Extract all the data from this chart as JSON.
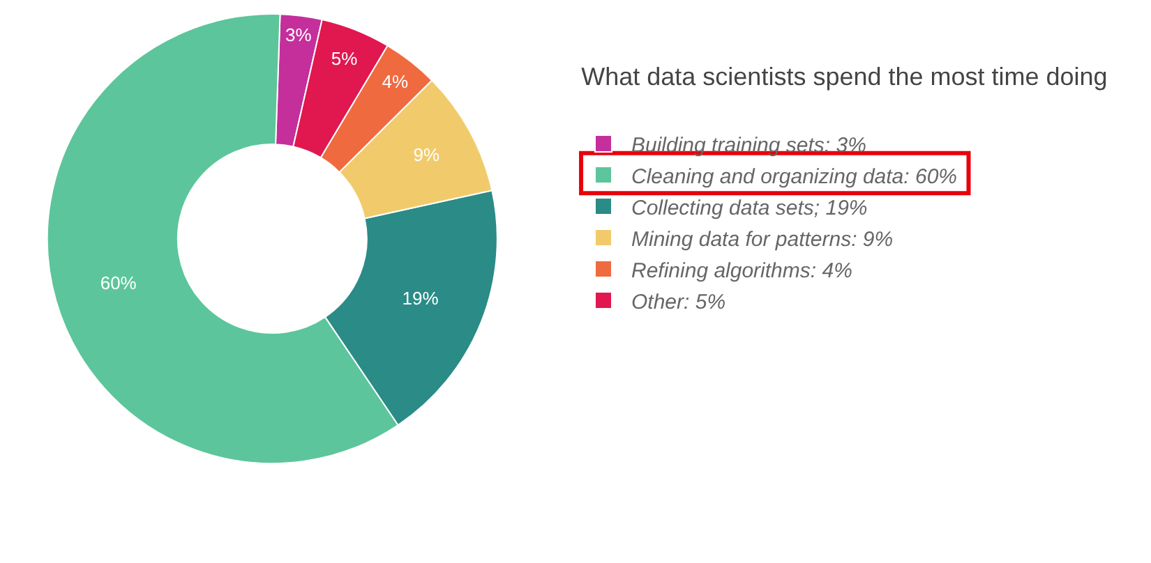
{
  "chart_data": {
    "type": "donut",
    "title": "What data scientists spend the most time doing",
    "categories": [
      "Building training sets: 3%",
      "Cleaning and organizing data: 60%",
      "Collecting data sets; 19%",
      "Mining data for patterns: 9%",
      "Refining algorithms: 4%",
      "Other: 5%"
    ],
    "values": [
      3,
      60,
      19,
      9,
      4,
      5
    ],
    "colors": [
      "#c42f9c",
      "#5cc59b",
      "#2a8b87",
      "#f1cb6b",
      "#f06a3f",
      "#e1174f"
    ],
    "value_labels": [
      "3%",
      "60%",
      "19%",
      "9%",
      "4%",
      "5%"
    ],
    "legend": "right"
  }
}
